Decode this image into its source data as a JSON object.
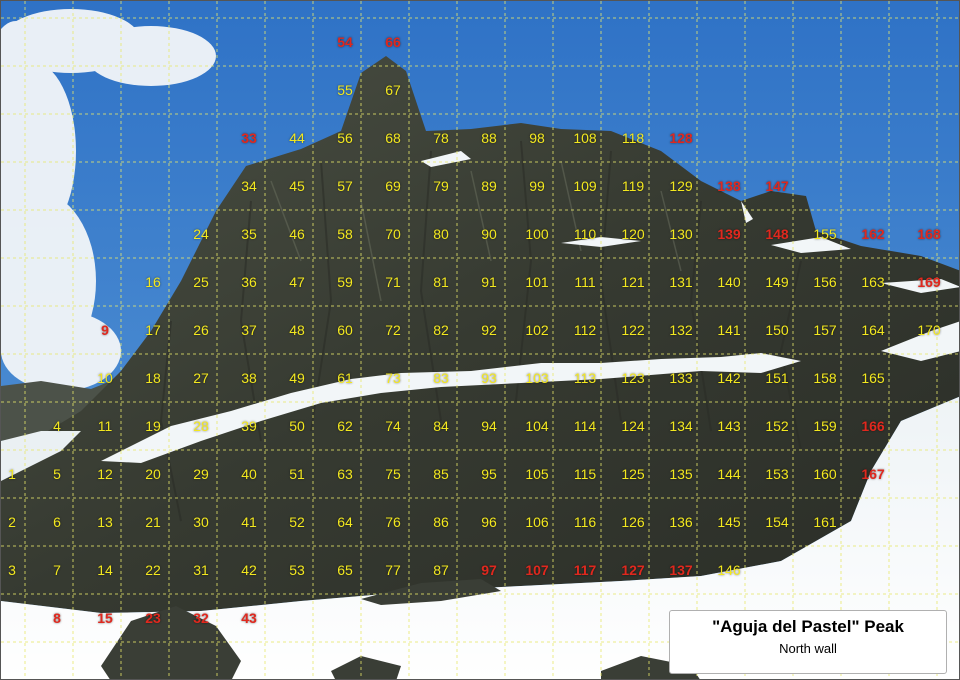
{
  "caption": {
    "title": "\"Aguja del Pastel\" Peak",
    "subtitle": "North wall"
  },
  "colors": {
    "label_yellow": "#f3e81f",
    "label_red": "#e0281e",
    "grid_line": "#e8e86a",
    "sky": "#3b7fcf",
    "rock": "#3a3f35",
    "snow": "#f4f7f8"
  },
  "labels": [
    {
      "text": "54",
      "color": "red"
    },
    {
      "text": "66",
      "color": "red"
    },
    {
      "text": "55",
      "color": "yellow"
    },
    {
      "text": "67",
      "color": "yellow"
    },
    {
      "text": "33",
      "color": "red"
    },
    {
      "text": "44",
      "color": "yellow"
    },
    {
      "text": "56",
      "color": "yellow"
    },
    {
      "text": "68",
      "color": "yellow"
    },
    {
      "text": "78",
      "color": "yellow"
    },
    {
      "text": "88",
      "color": "yellow"
    },
    {
      "text": "98",
      "color": "yellow"
    },
    {
      "text": "108",
      "color": "yellow"
    },
    {
      "text": "118",
      "color": "yellow"
    },
    {
      "text": "128",
      "color": "red"
    },
    {
      "text": "34",
      "color": "yellow"
    },
    {
      "text": "45",
      "color": "yellow"
    },
    {
      "text": "57",
      "color": "yellow"
    },
    {
      "text": "69",
      "color": "yellow"
    },
    {
      "text": "79",
      "color": "yellow"
    },
    {
      "text": "89",
      "color": "yellow"
    },
    {
      "text": "99",
      "color": "yellow"
    },
    {
      "text": "109",
      "color": "yellow"
    },
    {
      "text": "119",
      "color": "yellow"
    },
    {
      "text": "129",
      "color": "yellow"
    },
    {
      "text": "138",
      "color": "red"
    },
    {
      "text": "147",
      "color": "red"
    },
    {
      "text": "24",
      "color": "yellow"
    },
    {
      "text": "35",
      "color": "yellow"
    },
    {
      "text": "46",
      "color": "yellow"
    },
    {
      "text": "58",
      "color": "yellow"
    },
    {
      "text": "70",
      "color": "yellow"
    },
    {
      "text": "80",
      "color": "yellow"
    },
    {
      "text": "90",
      "color": "yellow"
    },
    {
      "text": "100",
      "color": "yellow"
    },
    {
      "text": "110",
      "color": "yellow"
    },
    {
      "text": "120",
      "color": "yellow"
    },
    {
      "text": "130",
      "color": "yellow"
    },
    {
      "text": "139",
      "color": "red"
    },
    {
      "text": "148",
      "color": "red"
    },
    {
      "text": "155",
      "color": "yellow"
    },
    {
      "text": "162",
      "color": "red"
    },
    {
      "text": "168",
      "color": "red"
    },
    {
      "text": "16",
      "color": "yellow"
    },
    {
      "text": "25",
      "color": "yellow"
    },
    {
      "text": "36",
      "color": "yellow"
    },
    {
      "text": "47",
      "color": "yellow"
    },
    {
      "text": "59",
      "color": "yellow"
    },
    {
      "text": "71",
      "color": "yellow"
    },
    {
      "text": "81",
      "color": "yellow"
    },
    {
      "text": "91",
      "color": "yellow"
    },
    {
      "text": "101",
      "color": "yellow"
    },
    {
      "text": "111",
      "color": "yellow"
    },
    {
      "text": "121",
      "color": "yellow"
    },
    {
      "text": "131",
      "color": "yellow"
    },
    {
      "text": "140",
      "color": "yellow"
    },
    {
      "text": "149",
      "color": "yellow"
    },
    {
      "text": "156",
      "color": "yellow"
    },
    {
      "text": "163",
      "color": "yellow"
    },
    {
      "text": "169",
      "color": "red"
    },
    {
      "text": "9",
      "color": "red"
    },
    {
      "text": "17",
      "color": "yellow"
    },
    {
      "text": "26",
      "color": "yellow"
    },
    {
      "text": "37",
      "color": "yellow"
    },
    {
      "text": "48",
      "color": "yellow"
    },
    {
      "text": "60",
      "color": "yellow"
    },
    {
      "text": "72",
      "color": "yellow"
    },
    {
      "text": "82",
      "color": "yellow"
    },
    {
      "text": "92",
      "color": "yellow"
    },
    {
      "text": "102",
      "color": "yellow"
    },
    {
      "text": "112",
      "color": "yellow"
    },
    {
      "text": "122",
      "color": "yellow"
    },
    {
      "text": "132",
      "color": "yellow"
    },
    {
      "text": "141",
      "color": "yellow"
    },
    {
      "text": "150",
      "color": "yellow"
    },
    {
      "text": "157",
      "color": "yellow"
    },
    {
      "text": "164",
      "color": "yellow"
    },
    {
      "text": "170",
      "color": "yellow"
    },
    {
      "text": "10",
      "color": "yellow"
    },
    {
      "text": "18",
      "color": "yellow"
    },
    {
      "text": "27",
      "color": "yellow"
    },
    {
      "text": "38",
      "color": "yellow"
    },
    {
      "text": "49",
      "color": "yellow"
    },
    {
      "text": "61",
      "color": "yellow"
    },
    {
      "text": "73",
      "color": "yellow"
    },
    {
      "text": "83",
      "color": "yellow"
    },
    {
      "text": "93",
      "color": "yellow"
    },
    {
      "text": "103",
      "color": "yellow"
    },
    {
      "text": "113",
      "color": "yellow"
    },
    {
      "text": "123",
      "color": "yellow"
    },
    {
      "text": "133",
      "color": "yellow"
    },
    {
      "text": "142",
      "color": "yellow"
    },
    {
      "text": "151",
      "color": "yellow"
    },
    {
      "text": "158",
      "color": "yellow"
    },
    {
      "text": "165",
      "color": "yellow"
    },
    {
      "text": "4",
      "color": "yellow"
    },
    {
      "text": "11",
      "color": "yellow"
    },
    {
      "text": "19",
      "color": "yellow"
    },
    {
      "text": "28",
      "color": "yellow"
    },
    {
      "text": "39",
      "color": "yellow"
    },
    {
      "text": "50",
      "color": "yellow"
    },
    {
      "text": "62",
      "color": "yellow"
    },
    {
      "text": "74",
      "color": "yellow"
    },
    {
      "text": "84",
      "color": "yellow"
    },
    {
      "text": "94",
      "color": "yellow"
    },
    {
      "text": "104",
      "color": "yellow"
    },
    {
      "text": "114",
      "color": "yellow"
    },
    {
      "text": "124",
      "color": "yellow"
    },
    {
      "text": "134",
      "color": "yellow"
    },
    {
      "text": "143",
      "color": "yellow"
    },
    {
      "text": "152",
      "color": "yellow"
    },
    {
      "text": "159",
      "color": "yellow"
    },
    {
      "text": "166",
      "color": "red"
    },
    {
      "text": "1",
      "color": "yellow"
    },
    {
      "text": "5",
      "color": "yellow"
    },
    {
      "text": "12",
      "color": "yellow"
    },
    {
      "text": "20",
      "color": "yellow"
    },
    {
      "text": "29",
      "color": "yellow"
    },
    {
      "text": "40",
      "color": "yellow"
    },
    {
      "text": "51",
      "color": "yellow"
    },
    {
      "text": "63",
      "color": "yellow"
    },
    {
      "text": "75",
      "color": "yellow"
    },
    {
      "text": "85",
      "color": "yellow"
    },
    {
      "text": "95",
      "color": "yellow"
    },
    {
      "text": "105",
      "color": "yellow"
    },
    {
      "text": "115",
      "color": "yellow"
    },
    {
      "text": "125",
      "color": "yellow"
    },
    {
      "text": "135",
      "color": "yellow"
    },
    {
      "text": "144",
      "color": "yellow"
    },
    {
      "text": "153",
      "color": "yellow"
    },
    {
      "text": "160",
      "color": "yellow"
    },
    {
      "text": "167",
      "color": "red"
    },
    {
      "text": "2",
      "color": "yellow"
    },
    {
      "text": "6",
      "color": "yellow"
    },
    {
      "text": "13",
      "color": "yellow"
    },
    {
      "text": "21",
      "color": "yellow"
    },
    {
      "text": "30",
      "color": "yellow"
    },
    {
      "text": "41",
      "color": "yellow"
    },
    {
      "text": "52",
      "color": "yellow"
    },
    {
      "text": "64",
      "color": "yellow"
    },
    {
      "text": "76",
      "color": "yellow"
    },
    {
      "text": "86",
      "color": "yellow"
    },
    {
      "text": "96",
      "color": "yellow"
    },
    {
      "text": "106",
      "color": "yellow"
    },
    {
      "text": "116",
      "color": "yellow"
    },
    {
      "text": "126",
      "color": "yellow"
    },
    {
      "text": "136",
      "color": "yellow"
    },
    {
      "text": "145",
      "color": "yellow"
    },
    {
      "text": "154",
      "color": "yellow"
    },
    {
      "text": "161",
      "color": "yellow"
    },
    {
      "text": "3",
      "color": "yellow"
    },
    {
      "text": "7",
      "color": "yellow"
    },
    {
      "text": "14",
      "color": "yellow"
    },
    {
      "text": "22",
      "color": "yellow"
    },
    {
      "text": "31",
      "color": "yellow"
    },
    {
      "text": "42",
      "color": "yellow"
    },
    {
      "text": "53",
      "color": "yellow"
    },
    {
      "text": "65",
      "color": "yellow"
    },
    {
      "text": "77",
      "color": "yellow"
    },
    {
      "text": "87",
      "color": "yellow"
    },
    {
      "text": "97",
      "color": "red"
    },
    {
      "text": "107",
      "color": "red"
    },
    {
      "text": "117",
      "color": "red"
    },
    {
      "text": "127",
      "color": "red"
    },
    {
      "text": "137",
      "color": "red"
    },
    {
      "text": "146",
      "color": "yellow"
    },
    {
      "text": "8",
      "color": "red"
    },
    {
      "text": "15",
      "color": "red"
    },
    {
      "text": "23",
      "color": "red"
    },
    {
      "text": "32",
      "color": "red"
    },
    {
      "text": "43",
      "color": "red"
    }
  ]
}
